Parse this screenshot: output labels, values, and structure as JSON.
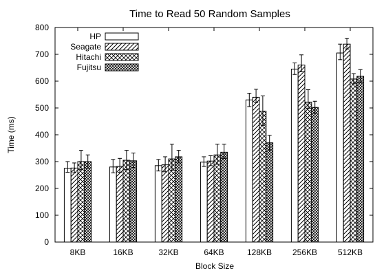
{
  "chart_data": {
    "type": "bar",
    "title": "Time to Read 50 Random Samples",
    "xlabel": "Block Size",
    "ylabel": "Time (ms)",
    "ylim": [
      0,
      800
    ],
    "yticks": [
      "0",
      "100",
      "200",
      "300",
      "400",
      "500",
      "600",
      "700",
      "800"
    ],
    "categories": [
      "8KB",
      "16KB",
      "32KB",
      "64KB",
      "128KB",
      "256KB",
      "512KB"
    ],
    "legend_position": "top-left",
    "error_bars": true,
    "series": [
      {
        "name": "HP",
        "pattern": "none",
        "values": [
          275,
          280,
          285,
          298,
          530,
          645,
          705
        ],
        "error_low": [
          260,
          258,
          265,
          282,
          505,
          625,
          680
        ],
        "error_high": [
          300,
          308,
          308,
          318,
          555,
          668,
          738
        ]
      },
      {
        "name": "Seagate",
        "pattern": "diagonal",
        "values": [
          276,
          282,
          288,
          302,
          540,
          660,
          738
        ],
        "error_low": [
          258,
          260,
          262,
          285,
          520,
          635,
          720
        ],
        "error_high": [
          295,
          312,
          318,
          322,
          570,
          698,
          760
        ]
      },
      {
        "name": "Hitachi",
        "pattern": "cross",
        "values": [
          300,
          305,
          310,
          325,
          488,
          522,
          608
        ],
        "error_low": [
          270,
          270,
          268,
          290,
          435,
          498,
          590
        ],
        "error_high": [
          342,
          342,
          365,
          365,
          545,
          568,
          628
        ]
      },
      {
        "name": "Fujitsu",
        "pattern": "checker",
        "values": [
          300,
          303,
          318,
          335,
          370,
          502,
          618
        ],
        "error_low": [
          275,
          278,
          295,
          312,
          343,
          480,
          595
        ],
        "error_high": [
          325,
          332,
          342,
          365,
          398,
          525,
          643
        ]
      }
    ]
  }
}
